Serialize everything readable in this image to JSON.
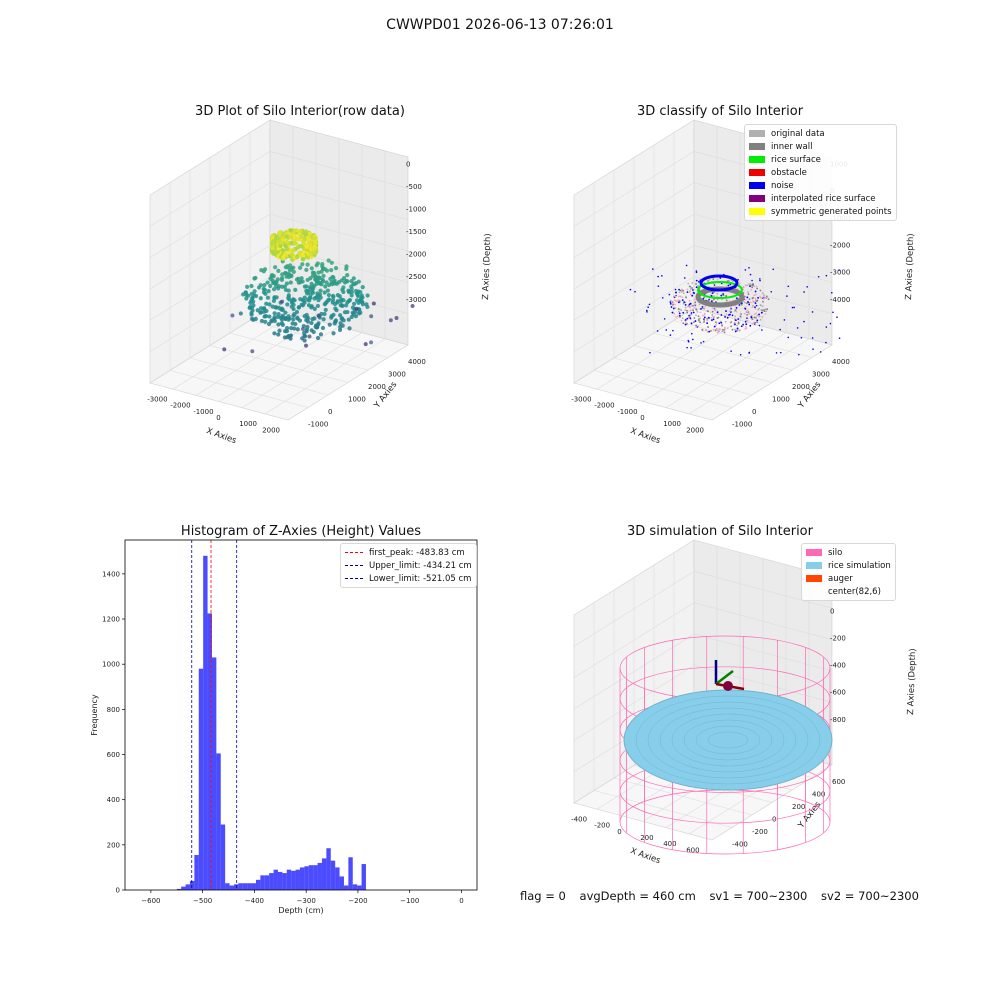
{
  "suptitle": "CWWPD01 2026-06-13 07:26:01",
  "footer": {
    "flag": "flag = 0",
    "avg_depth": "avgDepth = 460 cm",
    "sv1": "sv1 = 700~2300",
    "sv2": "sv2 = 700~2300"
  },
  "chart_data": [
    {
      "type": "scatter",
      "subtype": "3d",
      "title": "3D Plot of Silo Interior(row data)",
      "xlabel": "X Axies",
      "ylabel": "Y Axies",
      "zlabel": "Z Axies (Depth)",
      "x_ticks": [
        "-3000",
        "-2000",
        "-1000",
        "0",
        "1000",
        "2000"
      ],
      "y_ticks": [
        "-1000",
        "0",
        "1000",
        "2000",
        "3000",
        "4000"
      ],
      "z_ticks": [
        "0",
        "-500",
        "-1000",
        "-1500",
        "-2000",
        "-2500",
        "-3000"
      ],
      "colormap": "viridis"
    },
    {
      "type": "scatter",
      "subtype": "3d",
      "title": "3D classify of Silo Interior",
      "xlabel": "X Axies",
      "ylabel": "Y Axies",
      "zlabel": "Z Axies (Depth)",
      "x_ticks": [
        "-3000",
        "-2000",
        "-1000",
        "0",
        "1000",
        "2000"
      ],
      "y_ticks": [
        "-1000",
        "0",
        "1000",
        "2000",
        "3000",
        "4000"
      ],
      "z_ticks": [
        "1000",
        "0",
        "-1000",
        "-2000",
        "-3000",
        "-4000"
      ],
      "legend": [
        {
          "label": "original data",
          "color": "#b0b0b0"
        },
        {
          "label": "inner wall",
          "color": "#808080"
        },
        {
          "label": "rice surface",
          "color": "#00ee00"
        },
        {
          "label": "obstacle",
          "color": "#ee0000"
        },
        {
          "label": "noise",
          "color": "#0000ee"
        },
        {
          "label": "interpolated rice surface",
          "color": "#800080"
        },
        {
          "label": "symmetric generated points",
          "color": "#ffff00"
        }
      ]
    },
    {
      "type": "bar",
      "subtype": "histogram",
      "title": "Histogram of Z-Axies (Height) Values",
      "xlabel": "Depth (cm)",
      "ylabel": "Frequency",
      "xlim": [
        -650,
        30
      ],
      "ylim": [
        0,
        1550
      ],
      "x_ticks": [
        -600,
        -500,
        -400,
        -300,
        -200,
        -100,
        0
      ],
      "y_ticks": [
        0,
        200,
        400,
        600,
        800,
        1000,
        1200,
        1400
      ],
      "bin_start": -550,
      "bin_width": 8.5,
      "values": [
        5,
        15,
        25,
        40,
        155,
        980,
        1480,
        1225,
        1030,
        605,
        290,
        30,
        20,
        25,
        30,
        30,
        30,
        30,
        45,
        65,
        65,
        75,
        90,
        80,
        75,
        90,
        85,
        90,
        100,
        105,
        110,
        110,
        120,
        140,
        185,
        130,
        100,
        60,
        20,
        145,
        25,
        20,
        115
      ],
      "bar_color": "#0000ff",
      "lines": [
        {
          "label": "first_peak: -483.83 cm",
          "x": -483.83,
          "color": "#ff0000"
        },
        {
          "label": "Upper_limit: -434.21 cm",
          "x": -434.21,
          "color": "#0000aa"
        },
        {
          "label": "Lower_limit: -521.05 cm",
          "x": -521.05,
          "color": "#0000aa"
        }
      ]
    },
    {
      "type": "scatter",
      "subtype": "3d-simulation",
      "title": "3D simulation of Silo Interior",
      "xlabel": "X Axies",
      "ylabel": "Y Axies",
      "zlabel": "Z Axies (Depth)",
      "x_ticks": [
        "-400",
        "-200",
        "0",
        "200",
        "400",
        "600"
      ],
      "y_ticks": [
        "-400",
        "-200",
        "0",
        "200",
        "400",
        "600"
      ],
      "z_ticks": [
        "200",
        "0",
        "-200",
        "-400",
        "-600",
        "-800"
      ],
      "legend": [
        {
          "label": "silo",
          "color": "#ff69b4"
        },
        {
          "label": "rice simulation",
          "color": "#87ceeb"
        },
        {
          "label": "auger",
          "color": "#ff4500"
        },
        {
          "label": "center(82,6)",
          "color": ""
        }
      ]
    }
  ]
}
